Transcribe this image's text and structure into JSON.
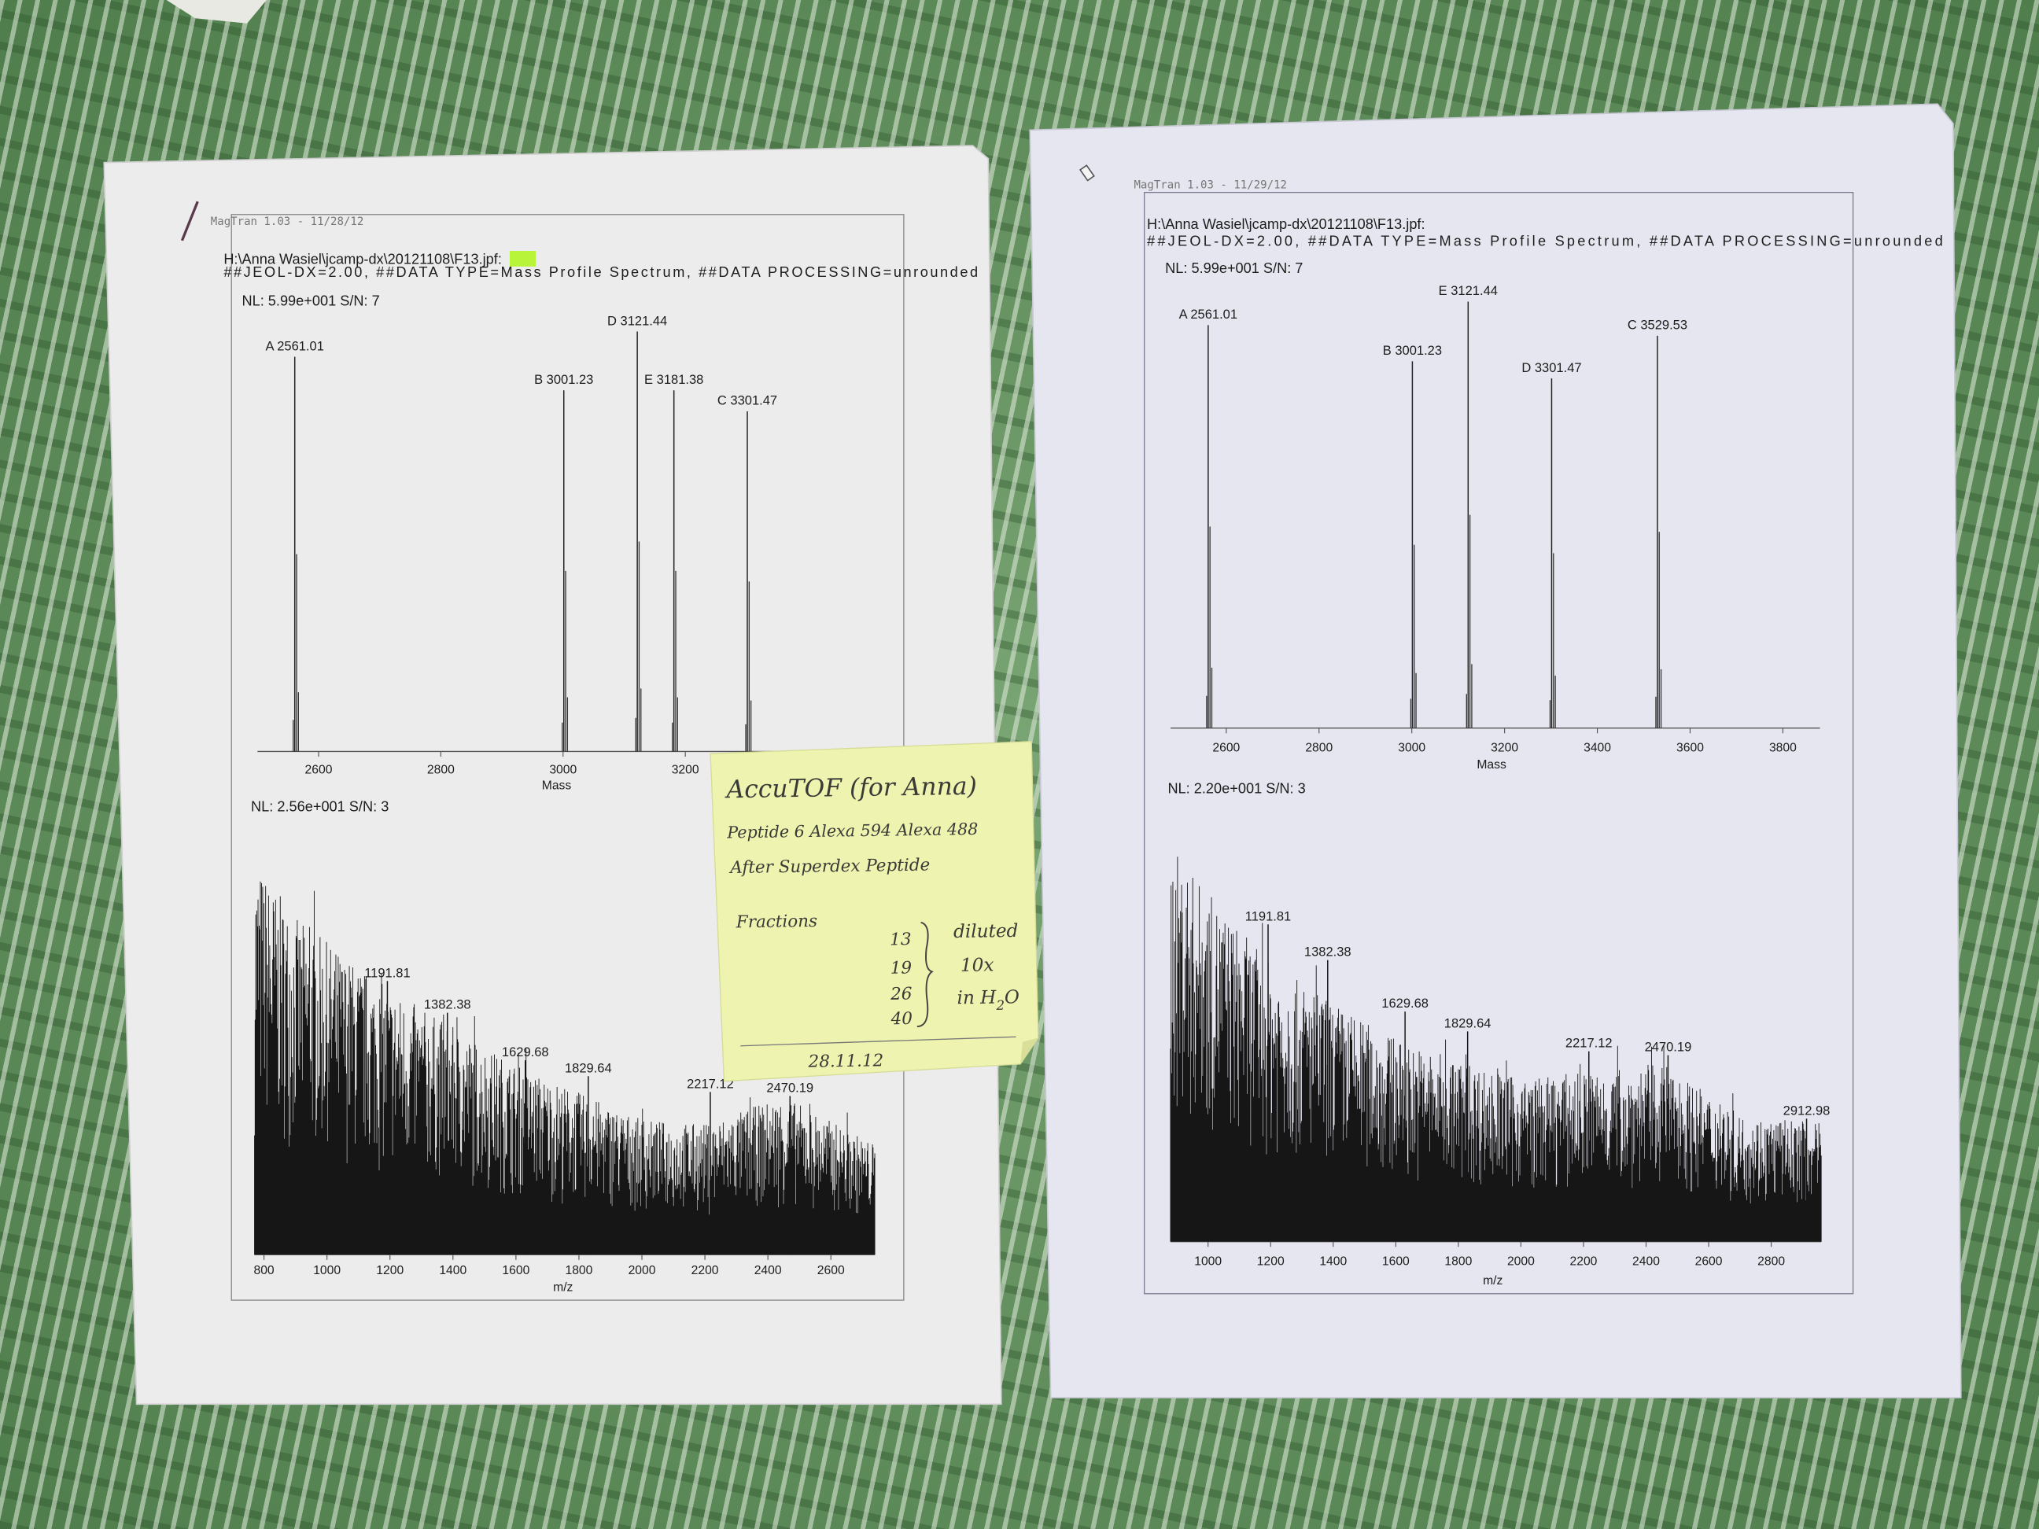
{
  "left_sheet": {
    "software_stamp": "MagTran 1.03 - 11/28/12",
    "file_path_prefix": "H:\\Anna Wasiel\\jcamp-dx\\20121108\\",
    "file_path_highlight": "F13",
    "file_path_suffix": ".jpf:",
    "highlight_color": "#b8f53a",
    "header_line2": "##JEOL-DX=2.00, ##DATA TYPE=Mass Profile Spectrum, ##DATA PROCESSING=unrounded",
    "top_nl": "NL: 5.99e+001  S/N: 7",
    "bottom_nl": "NL: 2.56e+001  S/N: 3"
  },
  "right_sheet": {
    "software_stamp": "MagTran 1.03 - 11/29/12",
    "file_path": "H:\\Anna Wasiel\\jcamp-dx\\20121108\\F13.jpf:",
    "header_line2": "##JEOL-DX=2.00, ##DATA TYPE=Mass Profile Spectrum, ##DATA PROCESSING=unrounded",
    "top_nl": "NL: 5.99e+001  S/N: 7",
    "bottom_nl": "NL: 2.20e+001  S/N: 3"
  },
  "sticky_note": {
    "title": "AccuTOF (for Anna)",
    "line1": "Peptide 6 Alexa 594 Alexa 488",
    "line2": "After Superdex Peptide",
    "fractions_label": "Fractions",
    "fractions": [
      "13",
      "19",
      "26",
      "40"
    ],
    "note1": "diluted",
    "note2": "10x",
    "note3": "in H",
    "note3_sub": "2",
    "note3_end": "O",
    "date": "28.11.12",
    "color": "#eef3b0"
  },
  "chart_data": [
    {
      "type": "bar",
      "subtype": "mass-spectrum-sticks",
      "sheet": "left",
      "xlabel": "Mass",
      "xlim": [
        2500,
        3550
      ],
      "xticks": [
        2600,
        2800,
        3000,
        3200
      ],
      "ylabel": "",
      "peaks": [
        {
          "label": "A 2561.01",
          "mass": 2561.01,
          "relative_intensity": 94
        },
        {
          "label": "B 3001.23",
          "mass": 3001.23,
          "relative_intensity": 86
        },
        {
          "label": "D 3121.44",
          "mass": 3121.44,
          "relative_intensity": 100
        },
        {
          "label": "E 3181.38",
          "mass": 3181.38,
          "relative_intensity": 86
        },
        {
          "label": "C 3301.47",
          "mass": 3301.47,
          "relative_intensity": 81
        }
      ]
    },
    {
      "type": "line",
      "subtype": "noisy-profile-spectrum",
      "sheet": "left",
      "xlabel": "m/z",
      "xlim": [
        770,
        2740
      ],
      "xticks": [
        800,
        1000,
        1200,
        1400,
        1600,
        1800,
        2000,
        2200,
        2400,
        2600
      ],
      "envelope": [
        [
          770,
          100
        ],
        [
          900,
          85
        ],
        [
          1200,
          67
        ],
        [
          1600,
          48
        ],
        [
          2000,
          34
        ],
        [
          2200,
          33
        ],
        [
          2450,
          40
        ],
        [
          2740,
          28
        ]
      ],
      "annotated_peaks": [
        {
          "label": "1191.81",
          "mz": 1191.81,
          "relative_intensity": 70
        },
        {
          "label": "1382.38",
          "mz": 1382.38,
          "relative_intensity": 62
        },
        {
          "label": "1629.68",
          "mz": 1629.68,
          "relative_intensity": 50
        },
        {
          "label": "1829.64",
          "mz": 1829.64,
          "relative_intensity": 46
        },
        {
          "label": "2217.12",
          "mz": 2217.12,
          "relative_intensity": 42
        },
        {
          "label": "2470.19",
          "mz": 2470.19,
          "relative_intensity": 41
        }
      ]
    },
    {
      "type": "bar",
      "subtype": "mass-spectrum-sticks",
      "sheet": "right",
      "xlabel": "Mass",
      "xlim": [
        2480,
        3880
      ],
      "xticks": [
        2600,
        2800,
        3000,
        3200,
        3400,
        3600,
        3800
      ],
      "peaks": [
        {
          "label": "A 2561.01",
          "mass": 2561.01,
          "relative_intensity": 94.5
        },
        {
          "label": "B 3001.23",
          "mass": 3001.23,
          "relative_intensity": 86
        },
        {
          "label": "E 3121.44",
          "mass": 3121.44,
          "relative_intensity": 100
        },
        {
          "label": "D 3301.47",
          "mass": 3301.47,
          "relative_intensity": 82
        },
        {
          "label": "C 3529.53",
          "mass": 3529.53,
          "relative_intensity": 92
        }
      ]
    },
    {
      "type": "line",
      "subtype": "noisy-profile-spectrum",
      "sheet": "right",
      "xlabel": "m/z",
      "xlim": [
        880,
        2960
      ],
      "xticks": [
        1000,
        1200,
        1400,
        1600,
        1800,
        2000,
        2200,
        2400,
        2600,
        2800
      ],
      "envelope": [
        [
          880,
          100
        ],
        [
          1000,
          88
        ],
        [
          1200,
          70
        ],
        [
          1600,
          51
        ],
        [
          2000,
          41
        ],
        [
          2450,
          45
        ],
        [
          2700,
          32
        ],
        [
          2960,
          30
        ]
      ],
      "annotated_peaks": [
        {
          "label": "1191.81",
          "mz": 1191.81,
          "relative_intensity": 81
        },
        {
          "label": "1382.38",
          "mz": 1382.38,
          "relative_intensity": 72
        },
        {
          "label": "1629.68",
          "mz": 1629.68,
          "relative_intensity": 59
        },
        {
          "label": "1829.64",
          "mz": 1829.64,
          "relative_intensity": 54
        },
        {
          "label": "2217.12",
          "mz": 2217.12,
          "relative_intensity": 49
        },
        {
          "label": "2470.19",
          "mz": 2470.19,
          "relative_intensity": 48
        },
        {
          "label": "2912.98",
          "mz": 2912.98,
          "relative_intensity": 32
        }
      ]
    }
  ]
}
